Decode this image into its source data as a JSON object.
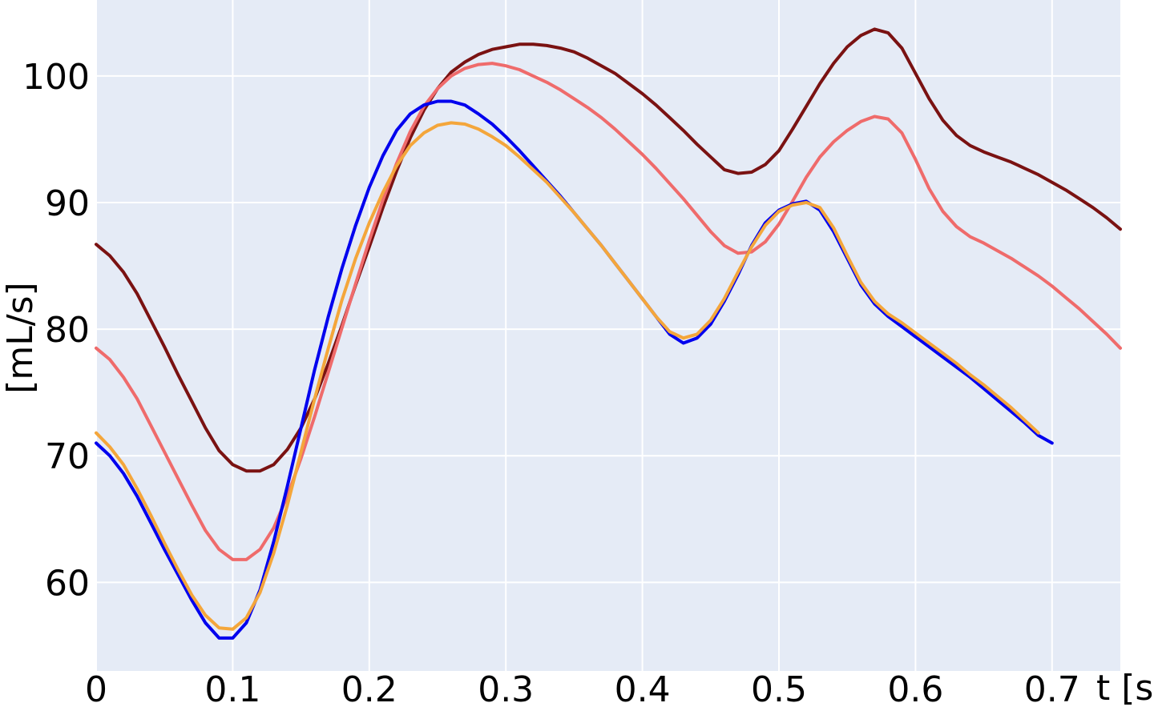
{
  "chart_data": {
    "type": "line",
    "title": "",
    "xlabel": "t [s]",
    "ylabel": "[mL/s]",
    "xlim": [
      0,
      0.75
    ],
    "ylim": [
      53,
      106
    ],
    "xticks": [
      0,
      0.1,
      0.2,
      0.3,
      0.4,
      0.5,
      0.6,
      0.7
    ],
    "xtick_labels": [
      "0",
      "0.1",
      "0.2",
      "0.3",
      "0.4",
      "0.5",
      "0.6",
      "0.7"
    ],
    "yticks": [
      60,
      70,
      80,
      90,
      100
    ],
    "ytick_labels": [
      "60",
      "70",
      "80",
      "90",
      "100"
    ],
    "grid": true,
    "legend": false,
    "background_color": "#e5ebf6",
    "grid_color": "#ffffff",
    "series": [
      {
        "color": "#7a1212",
        "points": [
          [
            0,
            86.7
          ],
          [
            0.01,
            85.8
          ],
          [
            0.02,
            84.5
          ],
          [
            0.03,
            82.8
          ],
          [
            0.04,
            80.7
          ],
          [
            0.05,
            78.6
          ],
          [
            0.06,
            76.4
          ],
          [
            0.07,
            74.3
          ],
          [
            0.08,
            72.2
          ],
          [
            0.09,
            70.4
          ],
          [
            0.1,
            69.3
          ],
          [
            0.11,
            68.8
          ],
          [
            0.12,
            68.8
          ],
          [
            0.13,
            69.3
          ],
          [
            0.14,
            70.5
          ],
          [
            0.15,
            72.2
          ],
          [
            0.16,
            74.5
          ],
          [
            0.17,
            77.3
          ],
          [
            0.18,
            80.3
          ],
          [
            0.19,
            83.5
          ],
          [
            0.2,
            86.5
          ],
          [
            0.21,
            89.6
          ],
          [
            0.22,
            92.5
          ],
          [
            0.23,
            95.1
          ],
          [
            0.24,
            97.3
          ],
          [
            0.25,
            99.0
          ],
          [
            0.26,
            100.3
          ],
          [
            0.27,
            101.1
          ],
          [
            0.28,
            101.7
          ],
          [
            0.29,
            102.1
          ],
          [
            0.3,
            102.3
          ],
          [
            0.31,
            102.5
          ],
          [
            0.32,
            102.5
          ],
          [
            0.33,
            102.4
          ],
          [
            0.34,
            102.2
          ],
          [
            0.35,
            101.9
          ],
          [
            0.36,
            101.4
          ],
          [
            0.37,
            100.8
          ],
          [
            0.38,
            100.2
          ],
          [
            0.39,
            99.4
          ],
          [
            0.4,
            98.6
          ],
          [
            0.41,
            97.7
          ],
          [
            0.42,
            96.7
          ],
          [
            0.43,
            95.7
          ],
          [
            0.44,
            94.6
          ],
          [
            0.45,
            93.6
          ],
          [
            0.46,
            92.6
          ],
          [
            0.47,
            92.3
          ],
          [
            0.48,
            92.4
          ],
          [
            0.49,
            93.0
          ],
          [
            0.5,
            94.1
          ],
          [
            0.51,
            95.8
          ],
          [
            0.52,
            97.6
          ],
          [
            0.53,
            99.4
          ],
          [
            0.54,
            101.0
          ],
          [
            0.55,
            102.3
          ],
          [
            0.56,
            103.2
          ],
          [
            0.57,
            103.7
          ],
          [
            0.58,
            103.4
          ],
          [
            0.59,
            102.2
          ],
          [
            0.6,
            100.2
          ],
          [
            0.61,
            98.2
          ],
          [
            0.62,
            96.5
          ],
          [
            0.63,
            95.3
          ],
          [
            0.64,
            94.5
          ],
          [
            0.65,
            94.0
          ],
          [
            0.66,
            93.6
          ],
          [
            0.67,
            93.2
          ],
          [
            0.68,
            92.7
          ],
          [
            0.69,
            92.2
          ],
          [
            0.7,
            91.6
          ],
          [
            0.71,
            91.0
          ],
          [
            0.72,
            90.3
          ],
          [
            0.73,
            89.6
          ],
          [
            0.74,
            88.8
          ],
          [
            0.75,
            87.9
          ]
        ]
      },
      {
        "color": "#ef6b6b",
        "points": [
          [
            0,
            78.5
          ],
          [
            0.01,
            77.6
          ],
          [
            0.02,
            76.2
          ],
          [
            0.03,
            74.5
          ],
          [
            0.04,
            72.4
          ],
          [
            0.05,
            70.3
          ],
          [
            0.06,
            68.2
          ],
          [
            0.07,
            66.1
          ],
          [
            0.08,
            64.1
          ],
          [
            0.09,
            62.6
          ],
          [
            0.1,
            61.8
          ],
          [
            0.11,
            61.8
          ],
          [
            0.12,
            62.6
          ],
          [
            0.13,
            64.3
          ],
          [
            0.14,
            66.8
          ],
          [
            0.15,
            69.8
          ],
          [
            0.16,
            73.1
          ],
          [
            0.17,
            76.6
          ],
          [
            0.18,
            80.1
          ],
          [
            0.19,
            83.6
          ],
          [
            0.2,
            87.0
          ],
          [
            0.21,
            90.2
          ],
          [
            0.22,
            93.1
          ],
          [
            0.23,
            95.6
          ],
          [
            0.24,
            97.6
          ],
          [
            0.25,
            99.0
          ],
          [
            0.26,
            100.0
          ],
          [
            0.27,
            100.6
          ],
          [
            0.28,
            100.9
          ],
          [
            0.29,
            101.0
          ],
          [
            0.3,
            100.8
          ],
          [
            0.31,
            100.5
          ],
          [
            0.32,
            100.0
          ],
          [
            0.33,
            99.5
          ],
          [
            0.34,
            98.9
          ],
          [
            0.35,
            98.2
          ],
          [
            0.36,
            97.5
          ],
          [
            0.37,
            96.7
          ],
          [
            0.38,
            95.8
          ],
          [
            0.39,
            94.8
          ],
          [
            0.4,
            93.8
          ],
          [
            0.41,
            92.7
          ],
          [
            0.42,
            91.5
          ],
          [
            0.43,
            90.3
          ],
          [
            0.44,
            89.0
          ],
          [
            0.45,
            87.7
          ],
          [
            0.46,
            86.6
          ],
          [
            0.47,
            86.0
          ],
          [
            0.48,
            86.1
          ],
          [
            0.49,
            86.9
          ],
          [
            0.5,
            88.3
          ],
          [
            0.51,
            90.1
          ],
          [
            0.52,
            92.0
          ],
          [
            0.53,
            93.6
          ],
          [
            0.54,
            94.8
          ],
          [
            0.55,
            95.7
          ],
          [
            0.56,
            96.4
          ],
          [
            0.57,
            96.8
          ],
          [
            0.58,
            96.6
          ],
          [
            0.59,
            95.5
          ],
          [
            0.6,
            93.4
          ],
          [
            0.61,
            91.1
          ],
          [
            0.62,
            89.3
          ],
          [
            0.63,
            88.1
          ],
          [
            0.64,
            87.3
          ],
          [
            0.65,
            86.8
          ],
          [
            0.66,
            86.2
          ],
          [
            0.67,
            85.6
          ],
          [
            0.68,
            84.9
          ],
          [
            0.69,
            84.2
          ],
          [
            0.7,
            83.4
          ],
          [
            0.71,
            82.5
          ],
          [
            0.72,
            81.6
          ],
          [
            0.73,
            80.6
          ],
          [
            0.74,
            79.6
          ],
          [
            0.75,
            78.5
          ]
        ]
      },
      {
        "color": "#0000ee",
        "points": [
          [
            0,
            71.0
          ],
          [
            0.01,
            70.0
          ],
          [
            0.02,
            68.6
          ],
          [
            0.03,
            66.8
          ],
          [
            0.04,
            64.7
          ],
          [
            0.05,
            62.6
          ],
          [
            0.06,
            60.6
          ],
          [
            0.07,
            58.6
          ],
          [
            0.08,
            56.8
          ],
          [
            0.09,
            55.6
          ],
          [
            0.1,
            55.6
          ],
          [
            0.11,
            56.8
          ],
          [
            0.12,
            59.4
          ],
          [
            0.13,
            63.2
          ],
          [
            0.14,
            67.6
          ],
          [
            0.15,
            72.2
          ],
          [
            0.16,
            76.8
          ],
          [
            0.17,
            81.0
          ],
          [
            0.18,
            84.8
          ],
          [
            0.19,
            88.2
          ],
          [
            0.2,
            91.2
          ],
          [
            0.21,
            93.7
          ],
          [
            0.22,
            95.7
          ],
          [
            0.23,
            97.0
          ],
          [
            0.24,
            97.7
          ],
          [
            0.25,
            98.0
          ],
          [
            0.26,
            98.0
          ],
          [
            0.27,
            97.7
          ],
          [
            0.28,
            97.0
          ],
          [
            0.29,
            96.2
          ],
          [
            0.3,
            95.2
          ],
          [
            0.31,
            94.1
          ],
          [
            0.32,
            92.9
          ],
          [
            0.33,
            91.7
          ],
          [
            0.34,
            90.5
          ],
          [
            0.35,
            89.2
          ],
          [
            0.36,
            87.9
          ],
          [
            0.37,
            86.6
          ],
          [
            0.38,
            85.2
          ],
          [
            0.39,
            83.8
          ],
          [
            0.4,
            82.4
          ],
          [
            0.41,
            81.0
          ],
          [
            0.42,
            79.6
          ],
          [
            0.43,
            78.9
          ],
          [
            0.44,
            79.3
          ],
          [
            0.45,
            80.4
          ],
          [
            0.46,
            82.2
          ],
          [
            0.47,
            84.3
          ],
          [
            0.48,
            86.6
          ],
          [
            0.49,
            88.4
          ],
          [
            0.5,
            89.4
          ],
          [
            0.51,
            89.9
          ],
          [
            0.52,
            90.1
          ],
          [
            0.53,
            89.4
          ],
          [
            0.54,
            87.7
          ],
          [
            0.55,
            85.6
          ],
          [
            0.56,
            83.5
          ],
          [
            0.57,
            82.0
          ],
          [
            0.58,
            81.0
          ],
          [
            0.59,
            80.2
          ],
          [
            0.6,
            79.4
          ],
          [
            0.61,
            78.6
          ],
          [
            0.62,
            77.8
          ],
          [
            0.63,
            77.0
          ],
          [
            0.64,
            76.2
          ],
          [
            0.65,
            75.3
          ],
          [
            0.66,
            74.4
          ],
          [
            0.67,
            73.5
          ],
          [
            0.68,
            72.6
          ],
          [
            0.69,
            71.6
          ],
          [
            0.7,
            71.0
          ]
        ]
      },
      {
        "color": "#f4a63b",
        "points": [
          [
            0,
            71.8
          ],
          [
            0.01,
            70.7
          ],
          [
            0.02,
            69.3
          ],
          [
            0.03,
            67.4
          ],
          [
            0.04,
            65.3
          ],
          [
            0.05,
            63.1
          ],
          [
            0.06,
            61.0
          ],
          [
            0.07,
            59.0
          ],
          [
            0.08,
            57.4
          ],
          [
            0.09,
            56.4
          ],
          [
            0.1,
            56.3
          ],
          [
            0.11,
            57.2
          ],
          [
            0.12,
            59.2
          ],
          [
            0.13,
            62.3
          ],
          [
            0.14,
            66.1
          ],
          [
            0.15,
            70.3
          ],
          [
            0.16,
            74.5
          ],
          [
            0.17,
            78.5
          ],
          [
            0.18,
            82.3
          ],
          [
            0.19,
            85.6
          ],
          [
            0.2,
            88.4
          ],
          [
            0.21,
            90.8
          ],
          [
            0.22,
            92.9
          ],
          [
            0.23,
            94.5
          ],
          [
            0.24,
            95.5
          ],
          [
            0.25,
            96.1
          ],
          [
            0.26,
            96.3
          ],
          [
            0.27,
            96.2
          ],
          [
            0.28,
            95.8
          ],
          [
            0.29,
            95.2
          ],
          [
            0.3,
            94.5
          ],
          [
            0.31,
            93.6
          ],
          [
            0.32,
            92.6
          ],
          [
            0.33,
            91.6
          ],
          [
            0.34,
            90.4
          ],
          [
            0.35,
            89.2
          ],
          [
            0.36,
            87.9
          ],
          [
            0.37,
            86.6
          ],
          [
            0.38,
            85.2
          ],
          [
            0.39,
            83.8
          ],
          [
            0.4,
            82.4
          ],
          [
            0.41,
            81.0
          ],
          [
            0.42,
            79.8
          ],
          [
            0.43,
            79.3
          ],
          [
            0.44,
            79.6
          ],
          [
            0.45,
            80.7
          ],
          [
            0.46,
            82.4
          ],
          [
            0.47,
            84.5
          ],
          [
            0.48,
            86.5
          ],
          [
            0.49,
            88.2
          ],
          [
            0.5,
            89.3
          ],
          [
            0.51,
            89.8
          ],
          [
            0.52,
            90.0
          ],
          [
            0.53,
            89.6
          ],
          [
            0.54,
            88.0
          ],
          [
            0.55,
            85.8
          ],
          [
            0.56,
            83.7
          ],
          [
            0.57,
            82.2
          ],
          [
            0.58,
            81.2
          ],
          [
            0.59,
            80.5
          ],
          [
            0.6,
            79.7
          ],
          [
            0.61,
            78.9
          ],
          [
            0.62,
            78.1
          ],
          [
            0.63,
            77.3
          ],
          [
            0.64,
            76.4
          ],
          [
            0.65,
            75.6
          ],
          [
            0.66,
            74.7
          ],
          [
            0.67,
            73.8
          ],
          [
            0.68,
            72.8
          ],
          [
            0.69,
            71.8
          ]
        ]
      }
    ]
  }
}
